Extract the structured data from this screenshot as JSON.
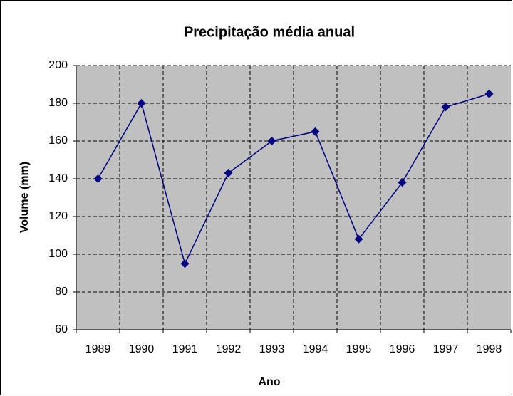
{
  "chart_data": {
    "type": "line",
    "title": "Precipitação média anual",
    "xlabel": "Ano",
    "ylabel": "Volume (mm)",
    "categories": [
      "1989",
      "1990",
      "1991",
      "1992",
      "1993",
      "1994",
      "1995",
      "1996",
      "1997",
      "1998"
    ],
    "values": [
      140,
      180,
      95,
      143,
      160,
      165,
      108,
      138,
      178,
      185
    ],
    "color": "#000080",
    "ylim": [
      60,
      200
    ],
    "yticks": [
      60,
      80,
      100,
      120,
      140,
      160,
      180,
      200
    ],
    "grid": true
  }
}
